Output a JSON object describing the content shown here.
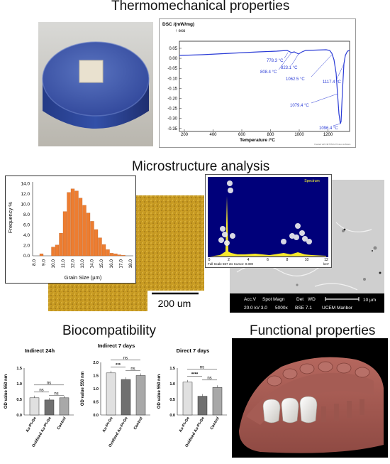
{
  "sections": {
    "thermo": "Thermomechanical properties",
    "micro": "Microstructure analysis",
    "bio": "Biocompatibility",
    "func": "Functional properties"
  },
  "dsc": {
    "ylabel": "DSC /(mW/mg)",
    "exo": "↑ exo",
    "xlabel": "Temperature /°C",
    "yticks": [
      "0.05",
      "0.00",
      "-0.05",
      "-0.10",
      "-0.15",
      "-0.20",
      "-0.25",
      "-0.30",
      "-0.35"
    ],
    "xticks": [
      "200",
      "400",
      "600",
      "800",
      "1000",
      "1200"
    ],
    "annotations": [
      "778.3 °C",
      "808.4 °C",
      "823.1 °C",
      "1062.5 °C",
      "1117.4 °C",
      "1079.4 °C",
      "1096.4 °C"
    ],
    "footer": "Created with NETZSCH Proteus software",
    "line_color": "#2a3bd6"
  },
  "histogram": {
    "ylabel": "Frequency %",
    "xlabel": "Grain Size (µm)",
    "yticks": [
      "0.0",
      "2.0",
      "4.0",
      "6.0",
      "8.0",
      "10.0",
      "12.0",
      "14.0"
    ],
    "xticks": [
      "8.0",
      "9.0",
      "10.0",
      "11.0",
      "12.0",
      "13.0",
      "14.0",
      "15.0",
      "16.0",
      "17.0",
      "18.0"
    ],
    "bar_color": "#ed7d31"
  },
  "micrograph": {
    "scale": "200 um"
  },
  "sem": {
    "caption_row1": [
      "Acc.V",
      "Spot Magn",
      "Det",
      "WD"
    ],
    "caption_row2": [
      "20.0 kV 3.0",
      "5000x",
      "BSE 7.1",
      "UCEM Maribor"
    ],
    "scale": "10 µm"
  },
  "eds": {
    "legend": "Spectrum",
    "footer": "Full Scale 557 cts Cursor: 0.000",
    "unit": "keV",
    "xticks": [
      "0",
      "2",
      "4",
      "6",
      "8",
      "10",
      "12"
    ]
  },
  "bio_charts": [
    {
      "title": "Indirect 24h",
      "ylabel": "OD value 550 nm",
      "yticks": [
        "0.0",
        "0.5",
        "1.0",
        "1.5"
      ],
      "categories": [
        "Au-Pt-Ge",
        "Oxidized Au-Pt-Ge",
        "Control"
      ],
      "values": [
        0.55,
        0.48,
        0.55
      ],
      "sig": [
        "ns",
        "ns",
        "ns"
      ]
    },
    {
      "title": "Indirect 7 days",
      "ylabel": "OD value 550 nm",
      "yticks": [
        "0.0",
        "0.5",
        "1.0",
        "1.5",
        "2.0"
      ],
      "categories": [
        "Au-Pt-Ge",
        "Oxidized Au-Pt-Ge",
        "Control"
      ],
      "values": [
        1.6,
        1.35,
        1.5
      ],
      "sig": [
        "ns",
        "***",
        "ns"
      ]
    },
    {
      "title": "Direct 7 days",
      "ylabel": "OD value 550 nm",
      "yticks": [
        "0.0",
        "0.5",
        "1.0",
        "1.5"
      ],
      "categories": [
        "Au-Pt-Ge",
        "Oxidized Au-Pt-Ge",
        "Control"
      ],
      "values": [
        1.05,
        0.6,
        0.88
      ],
      "sig": [
        "ns",
        "****",
        "ns"
      ]
    }
  ]
}
